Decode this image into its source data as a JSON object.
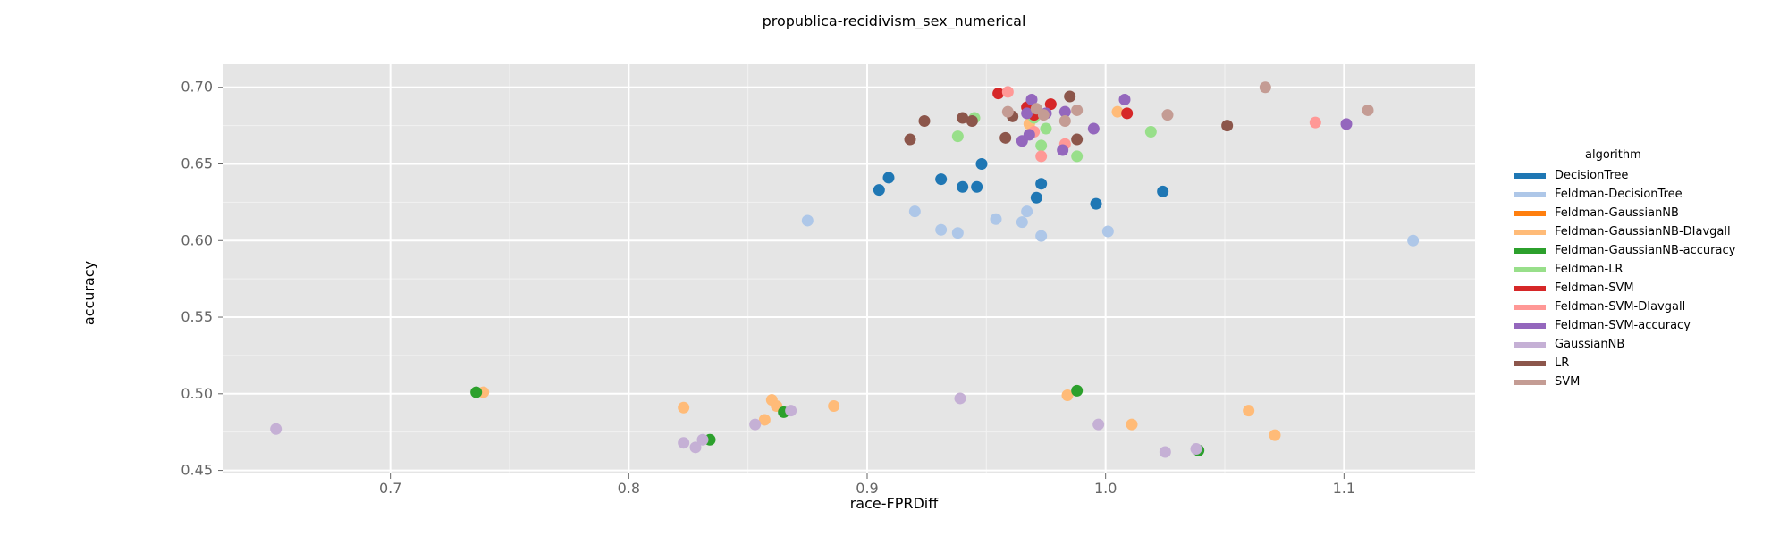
{
  "chart_data": {
    "type": "scatter",
    "title": "propublica-recidivism_sex_numerical",
    "xlabel": "race-FPRDiff",
    "ylabel": "accuracy",
    "xlim": [
      0.63,
      1.155
    ],
    "ylim": [
      0.448,
      0.715
    ],
    "x_ticks": [
      0.7,
      0.8,
      0.9,
      1.0,
      1.1
    ],
    "x_tick_labels": [
      "0.7",
      "0.8",
      "0.9",
      "1.0",
      "1.1"
    ],
    "y_ticks": [
      0.45,
      0.5,
      0.55,
      0.6,
      0.65,
      0.7
    ],
    "y_tick_labels": [
      "0.45",
      "0.50",
      "0.55",
      "0.60",
      "0.65",
      "0.70"
    ],
    "grid": true,
    "legend_title": "algorithm",
    "legend_position": "right",
    "series": [
      {
        "name": "DecisionTree",
        "color": "#1f77b4",
        "points": [
          [
            0.905,
            0.633
          ],
          [
            0.909,
            0.641
          ],
          [
            0.931,
            0.64
          ],
          [
            0.94,
            0.635
          ],
          [
            0.946,
            0.635
          ],
          [
            0.948,
            0.65
          ],
          [
            0.971,
            0.628
          ],
          [
            0.973,
            0.637
          ],
          [
            0.996,
            0.624
          ],
          [
            1.024,
            0.632
          ]
        ]
      },
      {
        "name": "Feldman-DecisionTree",
        "color": "#aec7e8",
        "points": [
          [
            0.875,
            0.613
          ],
          [
            0.92,
            0.619
          ],
          [
            0.931,
            0.607
          ],
          [
            0.938,
            0.605
          ],
          [
            0.954,
            0.614
          ],
          [
            0.965,
            0.612
          ],
          [
            0.967,
            0.619
          ],
          [
            0.973,
            0.603
          ],
          [
            1.001,
            0.606
          ],
          [
            1.129,
            0.6
          ]
        ]
      },
      {
        "name": "Feldman-GaussianNB",
        "color": "#ff7f0e",
        "points": []
      },
      {
        "name": "Feldman-GaussianNB-DIavgall",
        "color": "#ffbb78",
        "points": [
          [
            0.739,
            0.501
          ],
          [
            0.823,
            0.491
          ],
          [
            0.857,
            0.483
          ],
          [
            0.86,
            0.496
          ],
          [
            0.862,
            0.492
          ],
          [
            0.886,
            0.492
          ],
          [
            0.984,
            0.499
          ],
          [
            1.011,
            0.48
          ],
          [
            1.06,
            0.489
          ],
          [
            1.071,
            0.473
          ],
          [
            0.968,
            0.676
          ],
          [
            1.005,
            0.684
          ]
        ]
      },
      {
        "name": "Feldman-GaussianNB-accuracy",
        "color": "#2ca02c",
        "points": [
          [
            0.736,
            0.501
          ],
          [
            0.834,
            0.47
          ],
          [
            0.865,
            0.488
          ],
          [
            0.988,
            0.502
          ],
          [
            1.039,
            0.463
          ]
        ]
      },
      {
        "name": "Feldman-LR",
        "color": "#98df8a",
        "points": [
          [
            0.938,
            0.668
          ],
          [
            0.945,
            0.68
          ],
          [
            0.97,
            0.68
          ],
          [
            0.973,
            0.662
          ],
          [
            0.975,
            0.673
          ],
          [
            0.988,
            0.655
          ],
          [
            1.019,
            0.671
          ]
        ]
      },
      {
        "name": "Feldman-SVM",
        "color": "#d62728",
        "points": [
          [
            0.955,
            0.696
          ],
          [
            0.967,
            0.687
          ],
          [
            0.97,
            0.682
          ],
          [
            0.977,
            0.689
          ],
          [
            1.009,
            0.683
          ]
        ]
      },
      {
        "name": "Feldman-SVM-DIavgall",
        "color": "#ff9896",
        "points": [
          [
            0.959,
            0.697
          ],
          [
            0.97,
            0.671
          ],
          [
            0.973,
            0.655
          ],
          [
            0.983,
            0.663
          ],
          [
            1.088,
            0.677
          ]
        ]
      },
      {
        "name": "Feldman-SVM-accuracy",
        "color": "#9467bd",
        "points": [
          [
            0.965,
            0.665
          ],
          [
            0.967,
            0.683
          ],
          [
            0.968,
            0.669
          ],
          [
            0.969,
            0.692
          ],
          [
            0.975,
            0.683
          ],
          [
            0.982,
            0.659
          ],
          [
            0.983,
            0.684
          ],
          [
            0.995,
            0.673
          ],
          [
            1.008,
            0.692
          ],
          [
            1.101,
            0.676
          ]
        ]
      },
      {
        "name": "GaussianNB",
        "color": "#c5b0d5",
        "points": [
          [
            0.652,
            0.477
          ],
          [
            0.823,
            0.468
          ],
          [
            0.828,
            0.465
          ],
          [
            0.831,
            0.47
          ],
          [
            0.853,
            0.48
          ],
          [
            0.868,
            0.489
          ],
          [
            0.939,
            0.497
          ],
          [
            0.997,
            0.48
          ],
          [
            1.025,
            0.462
          ],
          [
            1.038,
            0.464
          ]
        ]
      },
      {
        "name": "LR",
        "color": "#8c564b",
        "points": [
          [
            0.918,
            0.666
          ],
          [
            0.924,
            0.678
          ],
          [
            0.94,
            0.68
          ],
          [
            0.944,
            0.678
          ],
          [
            0.958,
            0.667
          ],
          [
            0.961,
            0.681
          ],
          [
            0.985,
            0.694
          ],
          [
            0.988,
            0.666
          ],
          [
            1.051,
            0.675
          ]
        ]
      },
      {
        "name": "SVM",
        "color": "#c49c94",
        "points": [
          [
            0.959,
            0.684
          ],
          [
            0.971,
            0.686
          ],
          [
            0.974,
            0.682
          ],
          [
            0.983,
            0.678
          ],
          [
            0.988,
            0.685
          ],
          [
            1.026,
            0.682
          ],
          [
            1.067,
            0.7
          ],
          [
            1.11,
            0.685
          ]
        ]
      }
    ]
  }
}
